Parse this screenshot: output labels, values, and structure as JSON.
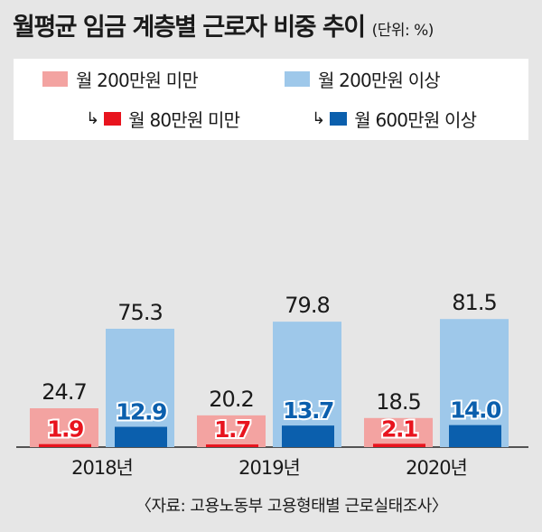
{
  "header": {
    "title": "월평균 임금 계층별 근로자 비중 추이",
    "unit": "(단위: %)"
  },
  "legend": {
    "items": [
      {
        "label": "월 200만원 미만",
        "color": "#f3a3a1"
      },
      {
        "label": "월 200만원 이상",
        "color": "#9ec8ea"
      },
      {
        "label": "월 80만원 미만",
        "color": "#e8141e",
        "arrow": "↳"
      },
      {
        "label": "월 600만원 이상",
        "color": "#0b5fad",
        "arrow": "↳"
      }
    ]
  },
  "chart_data": {
    "type": "bar",
    "categories": [
      "2018년",
      "2019년",
      "2020년"
    ],
    "series": [
      {
        "name": "월 200만원 미만",
        "values": [
          24.7,
          20.2,
          18.5
        ],
        "color": "#f3a3a1"
      },
      {
        "name": "월 80만원 미만",
        "values": [
          1.9,
          1.7,
          2.1
        ],
        "color": "#e8141e"
      },
      {
        "name": "월 200만원 이상",
        "values": [
          75.3,
          79.8,
          81.5
        ],
        "color": "#9ec8ea"
      },
      {
        "name": "월 600만원 이상",
        "values": [
          12.9,
          13.7,
          14.0
        ],
        "color": "#0b5fad"
      }
    ],
    "value_labels": {
      "월 200만원 미만": [
        "24.7",
        "20.2",
        "18.5"
      ],
      "월 80만원 미만": [
        "1.9",
        "1.7",
        "2.1"
      ],
      "월 200만원 이상": [
        "75.3",
        "79.8",
        "81.5"
      ],
      "월 600만원 이상": [
        "12.9",
        "13.7",
        "14.0"
      ]
    },
    "ylim": [
      0,
      100
    ],
    "grid": false,
    "legend_position": "top",
    "xlabel": "",
    "ylabel": ""
  },
  "footer": {
    "source": "〈자료: 고용노동부 고용형태별 근로실태조사〉"
  }
}
